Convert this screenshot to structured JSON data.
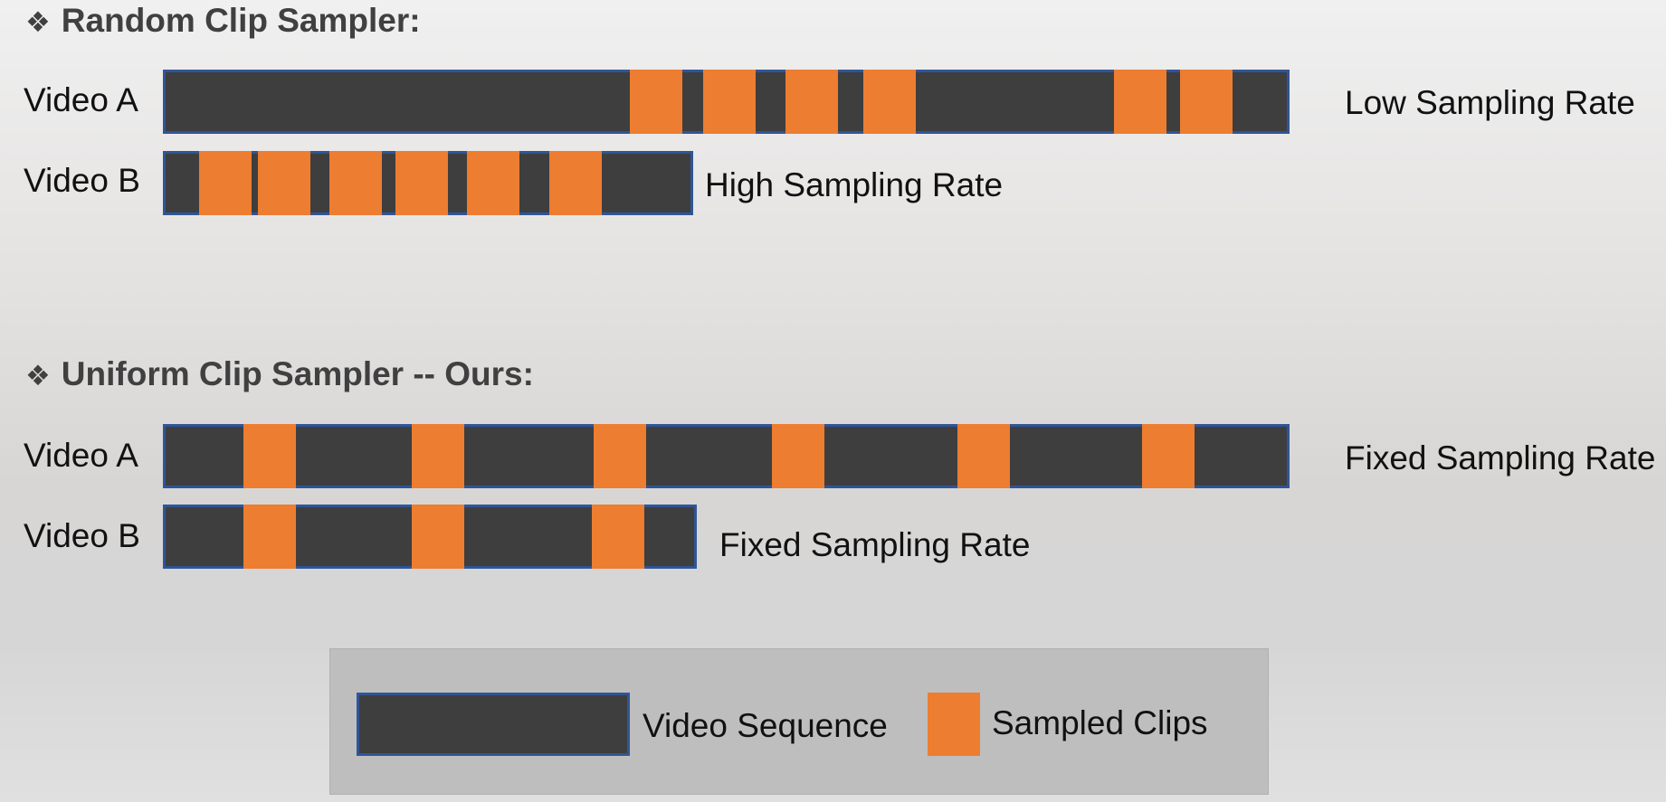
{
  "random_section": {
    "marker": "❖",
    "title": "Random Clip Sampler:",
    "video_a": {
      "label": "Video A",
      "rate": "Low Sampling Rate"
    },
    "video_b": {
      "label": "Video B",
      "rate": "High Sampling Rate"
    }
  },
  "uniform_section": {
    "marker": "❖",
    "title": "Uniform Clip Sampler -- Ours:",
    "video_a": {
      "label": "Video A",
      "rate": "Fixed Sampling Rate"
    },
    "video_b": {
      "label": "Video B",
      "rate": "Fixed Sampling Rate"
    }
  },
  "legend": {
    "video_sequence": "Video Sequence",
    "sampled_clips": "Sampled Clips"
  },
  "colors": {
    "video_sequence": "#3e3e3e",
    "sequence_border": "#2f5597",
    "sampled_clip": "#ed7d31"
  }
}
